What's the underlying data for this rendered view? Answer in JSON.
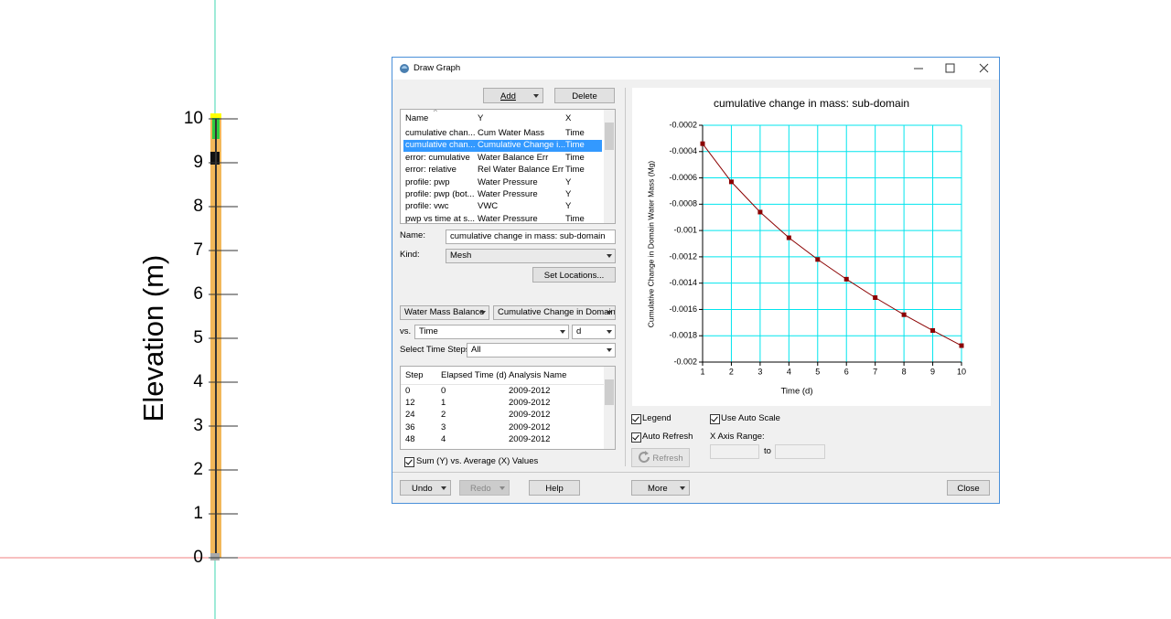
{
  "elevation_axis": {
    "label": "Elevation (m)",
    "ticks": [
      0,
      1,
      2,
      3,
      4,
      5,
      6,
      7,
      8,
      9,
      10
    ]
  },
  "dialog": {
    "title": "Draw Graph",
    "buttons": {
      "add": "Add",
      "delete": "Delete",
      "set_locations": "Set Locations...",
      "refresh": "Refresh",
      "undo": "Undo",
      "redo": "Redo",
      "help": "Help",
      "more": "More",
      "close": "Close"
    },
    "graph_list": {
      "columns": [
        "Name",
        "Y",
        "X"
      ],
      "rows": [
        [
          "cumulative chan...",
          "Cum Water Mass",
          "Time"
        ],
        [
          "cumulative chan...",
          "Cumulative Change i...",
          "Time"
        ],
        [
          "error: cumulative",
          "Water Balance Err",
          "Time"
        ],
        [
          "error: relative",
          "Rel Water Balance Err",
          "Time"
        ],
        [
          "profile: pwp",
          "Water Pressure",
          "Y"
        ],
        [
          "profile: pwp (bot...",
          "Water Pressure",
          "Y"
        ],
        [
          "profile: vwc",
          "VWC",
          "Y"
        ],
        [
          "pwp vs time at s...",
          "Water Pressure",
          "Time"
        ]
      ]
    },
    "name_label": "Name:",
    "name_value": "cumulative change in mass: sub-domain",
    "kind_label": "Kind:",
    "kind_value": "Mesh",
    "y_category": "Water Mass Balance",
    "y_variable": "Cumulative Change in Domain W",
    "vs_label": "vs.",
    "x_variable": "Time",
    "x_unit": "d",
    "time_steps_label": "Select Time Steps:",
    "time_steps_value": "All",
    "steps_table": {
      "columns": [
        "Step",
        "Elapsed Time (d)",
        "Analysis Name"
      ],
      "rows": [
        [
          "0",
          "0",
          "2009-2012"
        ],
        [
          "12",
          "1",
          "2009-2012"
        ],
        [
          "24",
          "2",
          "2009-2012"
        ],
        [
          "36",
          "3",
          "2009-2012"
        ],
        [
          "48",
          "4",
          "2009-2012"
        ]
      ]
    },
    "sum_checkbox": "Sum (Y) vs. Average (X) Values",
    "legend_checkbox": "Legend",
    "auto_refresh_checkbox": "Auto Refresh",
    "auto_scale_checkbox": "Use Auto Scale",
    "x_axis_range_label": "X Axis Range:",
    "to_label": "to"
  },
  "chart_data": {
    "type": "line",
    "title": "cumulative change in mass: sub-domain",
    "x_label": "Time (d)",
    "y_label": "Cumulative Change in Domain Water Mass (Mg)",
    "x": [
      1,
      2,
      3,
      4,
      5,
      6,
      7,
      8,
      9,
      10
    ],
    "series": [
      {
        "color": "#8b0000",
        "values": [
          -0.00034,
          -0.00063,
          -0.00086,
          -0.001055,
          -0.00122,
          -0.00137,
          -0.00151,
          -0.00164,
          -0.00176,
          -0.001875
        ]
      }
    ],
    "xlim": [
      1,
      10
    ],
    "ylim": [
      -0.002,
      -0.0002
    ],
    "xticks": [
      1,
      2,
      3,
      4,
      5,
      6,
      7,
      8,
      9,
      10
    ],
    "yticks": [
      -0.002,
      -0.0018,
      -0.0016,
      -0.0014,
      -0.0012,
      -0.001,
      -0.0008,
      -0.0006,
      -0.0004,
      -0.0002
    ],
    "grid": true,
    "grid_color": "#00e5ee"
  }
}
